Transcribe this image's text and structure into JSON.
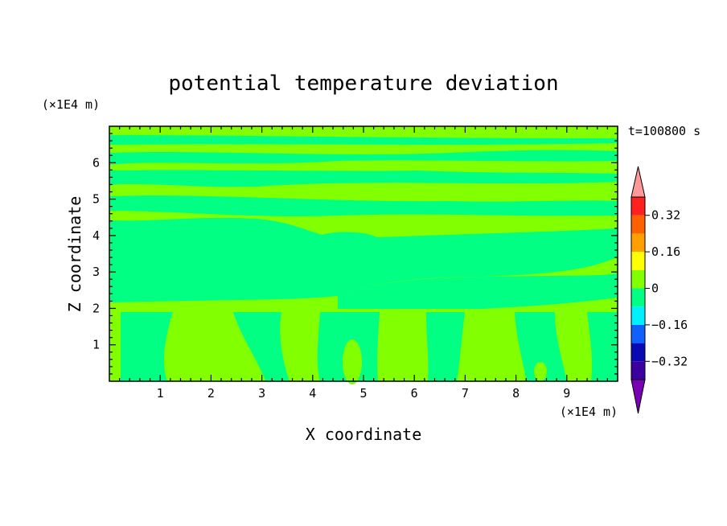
{
  "chart_data": {
    "type": "heatmap",
    "title": "potential temperature deviation",
    "xlabel": "X coordinate",
    "ylabel": "Z coordinate",
    "x_unit": "(×1E4 m)",
    "y_unit": "(×1E4 m)",
    "time_label": "t=100800 s",
    "xlim": [
      0,
      10
    ],
    "ylim": [
      0,
      7
    ],
    "x_ticks": [
      "1",
      "2",
      "3",
      "4",
      "5",
      "6",
      "7",
      "8",
      "9"
    ],
    "y_ticks": [
      "1",
      "2",
      "3",
      "4",
      "5",
      "6"
    ],
    "colorbar": {
      "tick_labels": [
        "0.32",
        "0.16",
        "0",
        "−0.16",
        "−0.32"
      ],
      "colors": [
        "#7a00b4",
        "#3c00a0",
        "#0a0ab4",
        "#1060ff",
        "#00f0ff",
        "#00ff82",
        "#82ff00",
        "#ffff00",
        "#ffa000",
        "#ff6000",
        "#ff2020",
        "#ff9999"
      ],
      "extend": "both"
    },
    "field": {
      "background_level": "0 to 0.08 (light green)",
      "region_level": "-0.08 to 0 (green)"
    }
  }
}
